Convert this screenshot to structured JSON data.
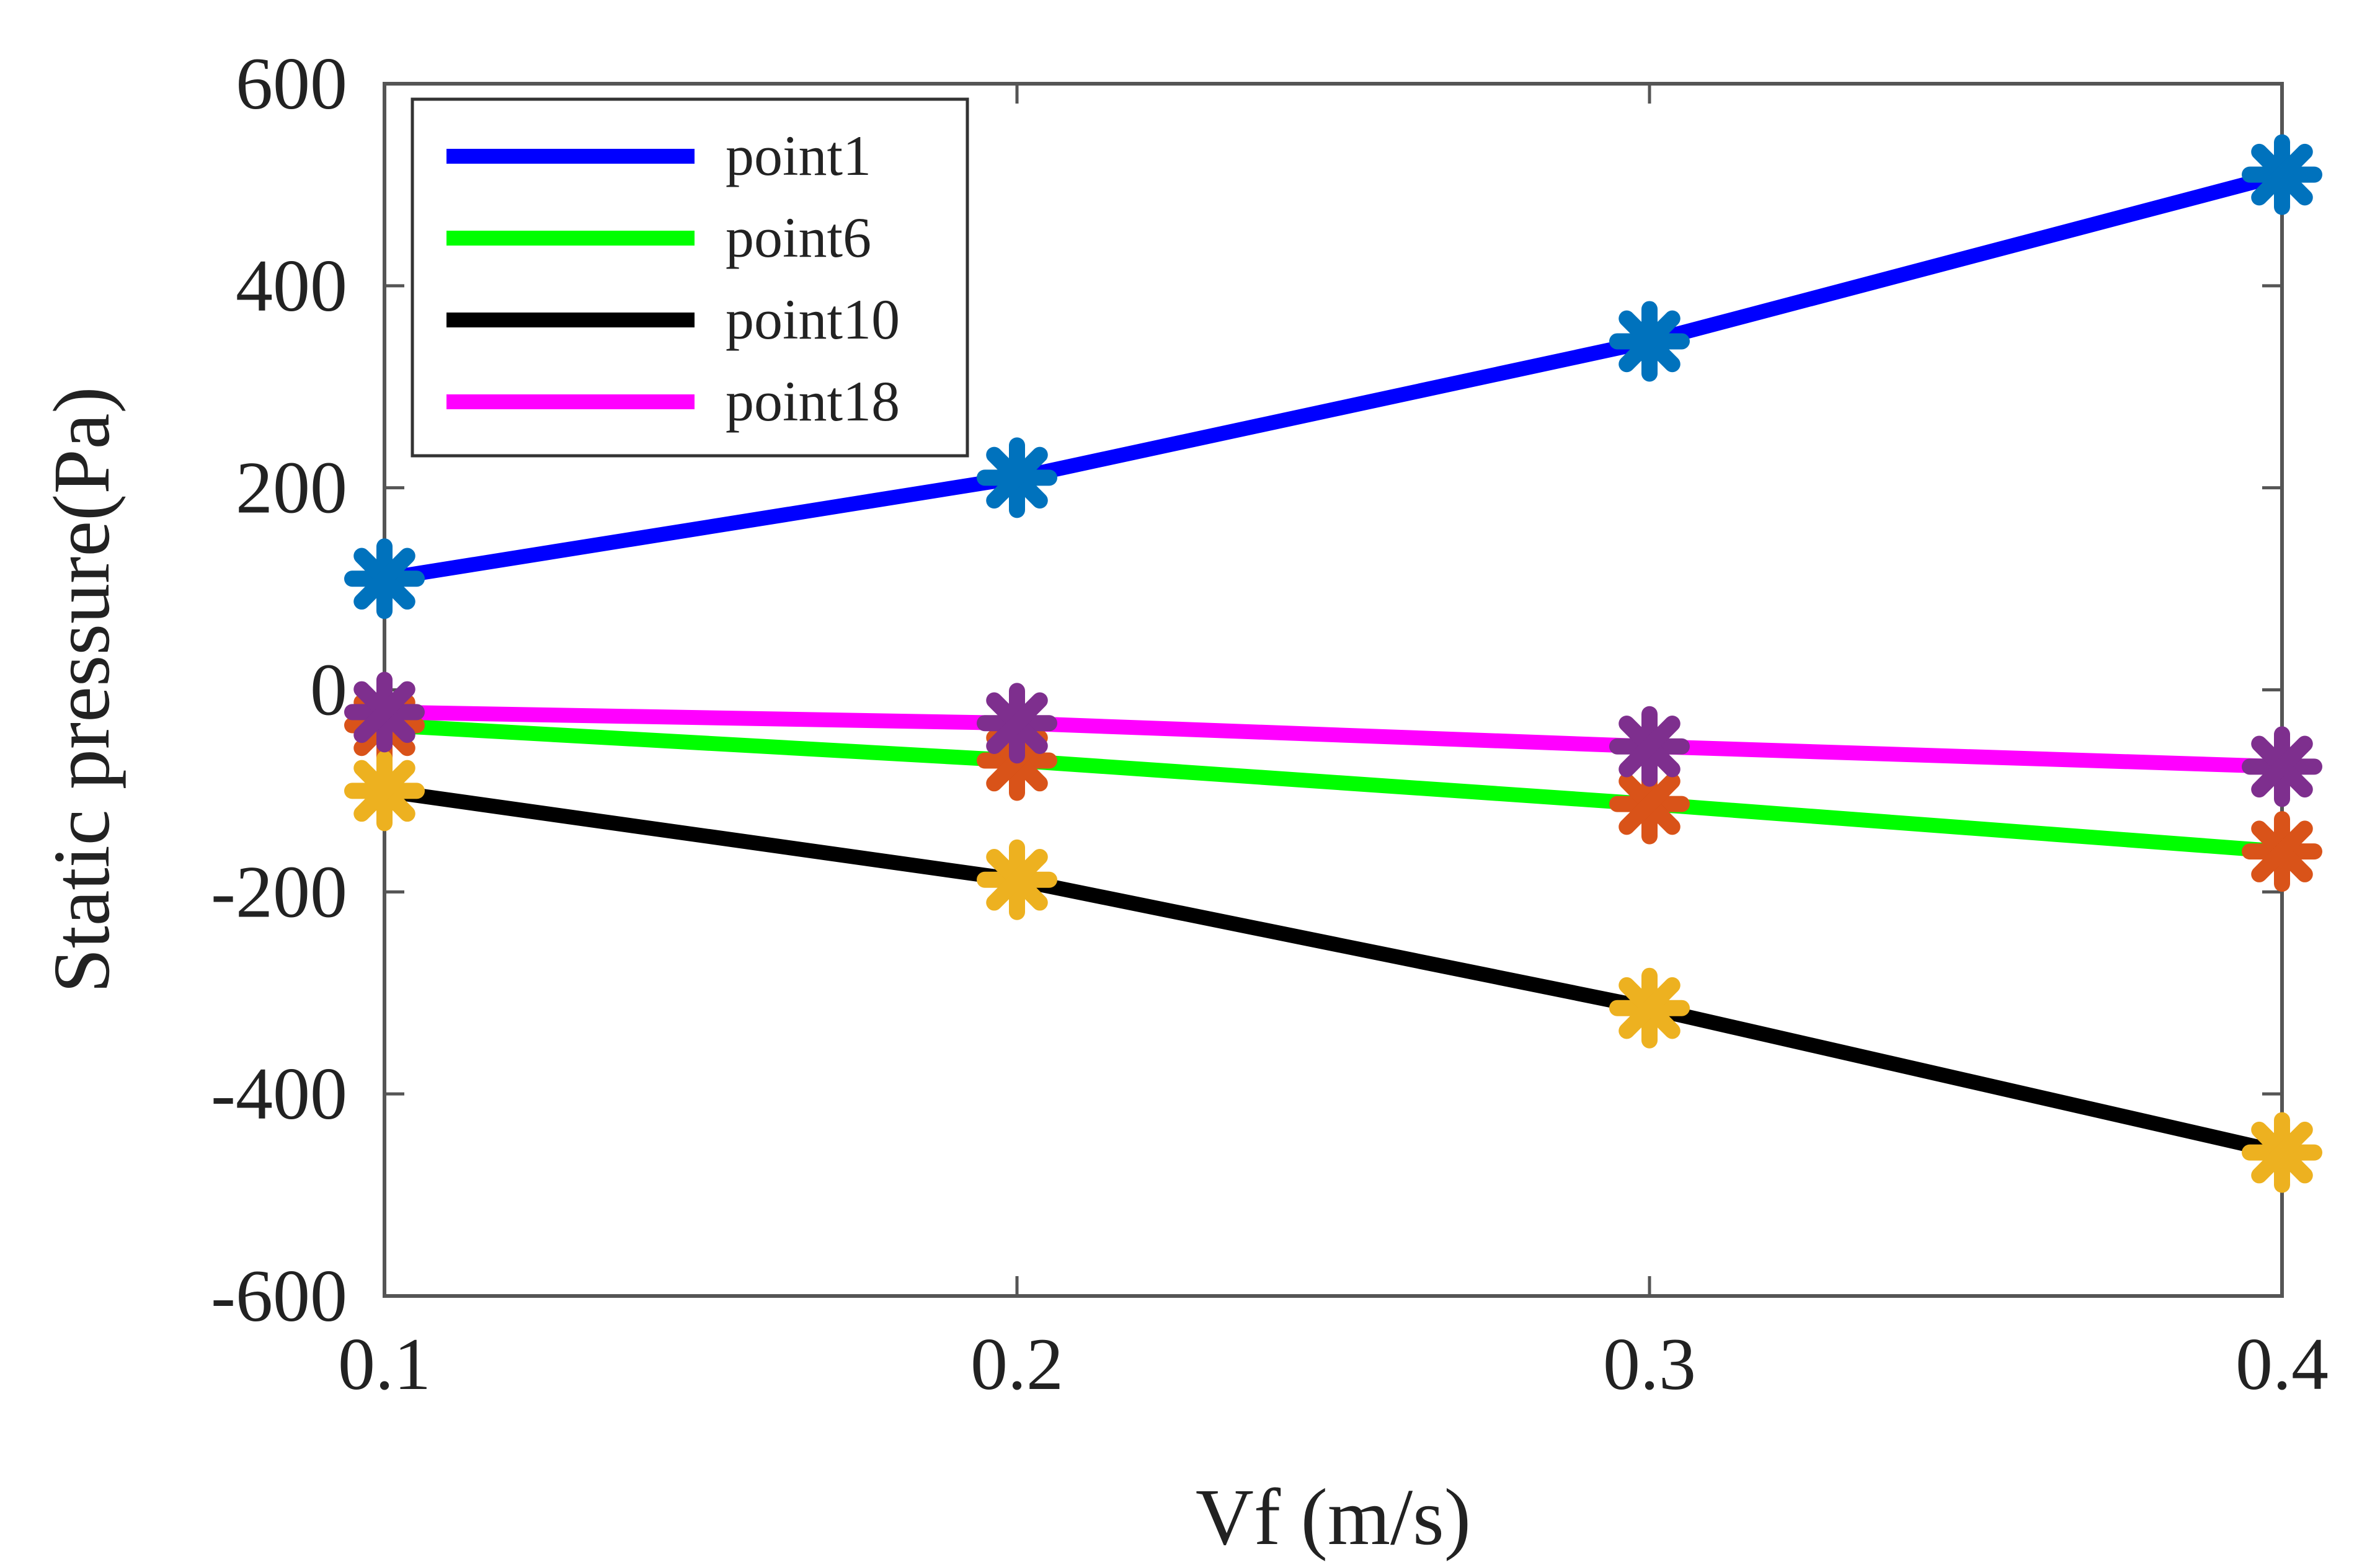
{
  "chart_data": {
    "type": "line",
    "title": "",
    "xlabel": "Vf (m/s)",
    "ylabel": "Static pressure(Pa)",
    "x": [
      0.1,
      0.2,
      0.3,
      0.4
    ],
    "xlim": [
      0.1,
      0.4
    ],
    "ylim": [
      -600,
      600
    ],
    "xticks": [
      "0.1",
      "0.2",
      "0.3",
      "0.4"
    ],
    "yticks": [
      "600",
      "400",
      "200",
      "0",
      "-200",
      "-400",
      "-600"
    ],
    "legend_position": "top-left",
    "grid": false,
    "series": [
      {
        "name": "point1",
        "values": [
          110,
          210,
          345,
          510
        ],
        "line_color": "#0000ff",
        "marker_color": "#0072bd"
      },
      {
        "name": "point6",
        "values": [
          -35,
          -70,
          -113,
          -160
        ],
        "line_color": "#00ff00",
        "marker_color": "#d95319"
      },
      {
        "name": "point10",
        "values": [
          -100,
          -188,
          -315,
          -458
        ],
        "line_color": "#000000",
        "marker_color": "#edb120"
      },
      {
        "name": "point18",
        "values": [
          -22,
          -33,
          -56,
          -76
        ],
        "line_color": "#ff00ff",
        "marker_color": "#7e2f8e"
      }
    ]
  }
}
